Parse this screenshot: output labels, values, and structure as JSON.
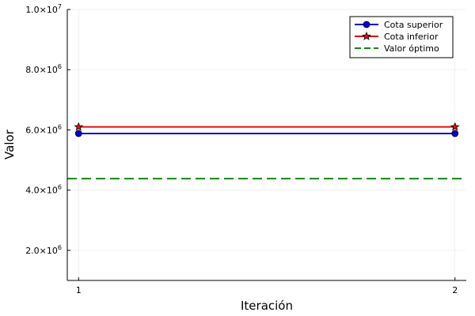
{
  "chart_data": {
    "type": "line",
    "xlabel": "Iteración",
    "ylabel": "Valor",
    "xlim": [
      0.97,
      2.03
    ],
    "ylim": [
      1000000,
      10000000
    ],
    "x_ticks": [
      {
        "value": 1,
        "label": "1"
      },
      {
        "value": 2,
        "label": "2"
      }
    ],
    "y_ticks": [
      {
        "value": 2000000,
        "mantissa": "2.0×10",
        "exp": "6"
      },
      {
        "value": 4000000,
        "mantissa": "4.0×10",
        "exp": "6"
      },
      {
        "value": 6000000,
        "mantissa": "6.0×10",
        "exp": "6"
      },
      {
        "value": 8000000,
        "mantissa": "8.0×10",
        "exp": "6"
      },
      {
        "value": 10000000,
        "mantissa": "1.0×10",
        "exp": "7"
      }
    ],
    "grid": true,
    "legend_position": "top-right",
    "series": [
      {
        "name": "Cota superior",
        "x": [
          1,
          2
        ],
        "y": [
          5880000,
          5880000
        ],
        "color": "#0000cc",
        "marker": "circle",
        "style": "solid"
      },
      {
        "name": "Cota inferior",
        "x": [
          1,
          2
        ],
        "y": [
          6100000,
          6100000
        ],
        "color": "#dd1111",
        "marker": "star",
        "style": "solid"
      },
      {
        "name": "Valor óptimo",
        "hline": 4380000,
        "color": "#118811",
        "marker": "none",
        "style": "dashed"
      }
    ]
  }
}
